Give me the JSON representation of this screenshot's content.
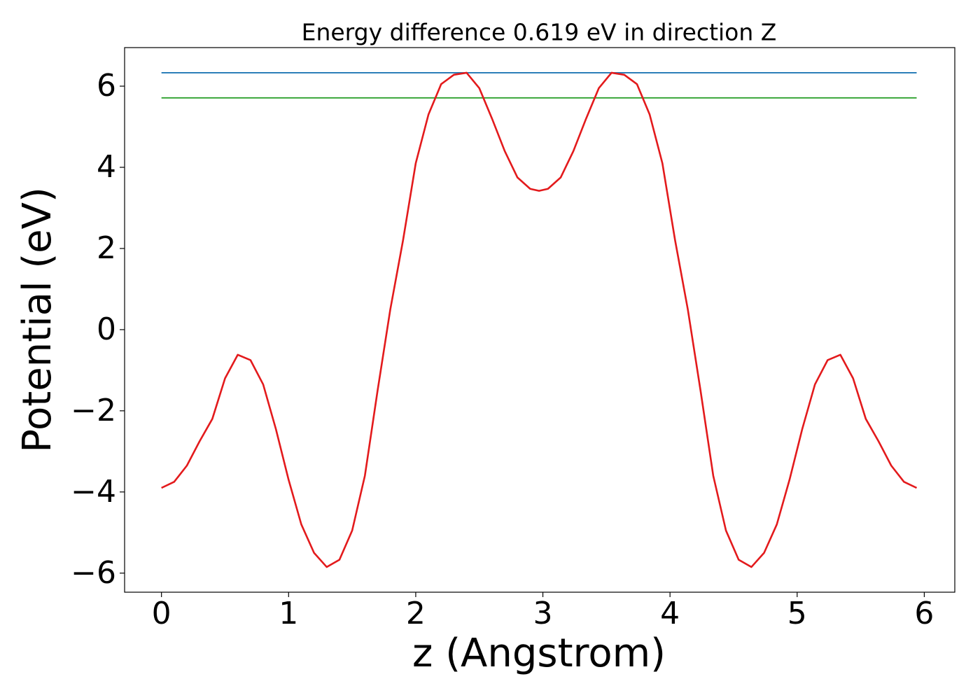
{
  "chart_data": {
    "type": "line",
    "title": "Energy difference 0.619 eV in direction Z",
    "xlabel": "z (Angstrom)",
    "ylabel": "Potential (eV)",
    "xlim": [
      -0.29,
      6.24
    ],
    "ylim": [
      -6.47,
      6.95
    ],
    "xticks": [
      0,
      1,
      2,
      3,
      4,
      5,
      6
    ],
    "yticks": [
      {
        "value": -6,
        "label": "−6"
      },
      {
        "value": -4,
        "label": "−4"
      },
      {
        "value": -2,
        "label": "−2"
      },
      0,
      2,
      4,
      6
    ],
    "series": [
      {
        "color": "#1f77b4",
        "x": [
          0,
          5.94
        ],
        "values": [
          6.33,
          6.33
        ]
      },
      {
        "color": "#2ca02c",
        "x": [
          0,
          5.94
        ],
        "values": [
          5.711,
          5.711
        ]
      },
      {
        "color": "#e31a1c",
        "x": [
          0,
          0.1,
          0.2,
          0.3,
          0.4,
          0.5,
          0.6,
          0.7,
          0.8,
          0.9,
          1.0,
          1.1,
          1.2,
          1.3,
          1.4,
          1.5,
          1.6,
          1.7,
          1.8,
          1.9,
          2.0,
          2.1,
          2.2,
          2.3,
          2.4,
          2.5,
          2.6,
          2.7,
          2.8,
          2.9,
          2.97,
          3.04,
          3.14,
          3.24,
          3.34,
          3.44,
          3.54,
          3.64,
          3.74,
          3.84,
          3.94,
          4.04,
          4.14,
          4.24,
          4.34,
          4.44,
          4.54,
          4.64,
          4.74,
          4.84,
          4.94,
          5.04,
          5.14,
          5.24,
          5.34,
          5.44,
          5.54,
          5.64,
          5.74,
          5.84,
          5.94
        ],
        "values": [
          -3.9,
          -3.75,
          -3.35,
          -2.75,
          -2.2,
          -1.2,
          -0.62,
          -0.75,
          -1.35,
          -2.45,
          -3.7,
          -4.8,
          -5.5,
          -5.85,
          -5.67,
          -4.95,
          -3.6,
          -1.5,
          0.5,
          2.2,
          4.1,
          5.3,
          6.05,
          6.28,
          6.33,
          5.95,
          5.2,
          4.4,
          3.75,
          3.47,
          3.42,
          3.47,
          3.75,
          4.4,
          5.2,
          5.95,
          6.33,
          6.28,
          6.05,
          5.3,
          4.1,
          2.2,
          0.5,
          -1.5,
          -3.6,
          -4.95,
          -5.67,
          -5.85,
          -5.5,
          -4.8,
          -3.7,
          -2.45,
          -1.35,
          -0.75,
          -0.62,
          -1.2,
          -2.2,
          -2.75,
          -3.35,
          -3.75,
          -3.9
        ]
      }
    ]
  }
}
